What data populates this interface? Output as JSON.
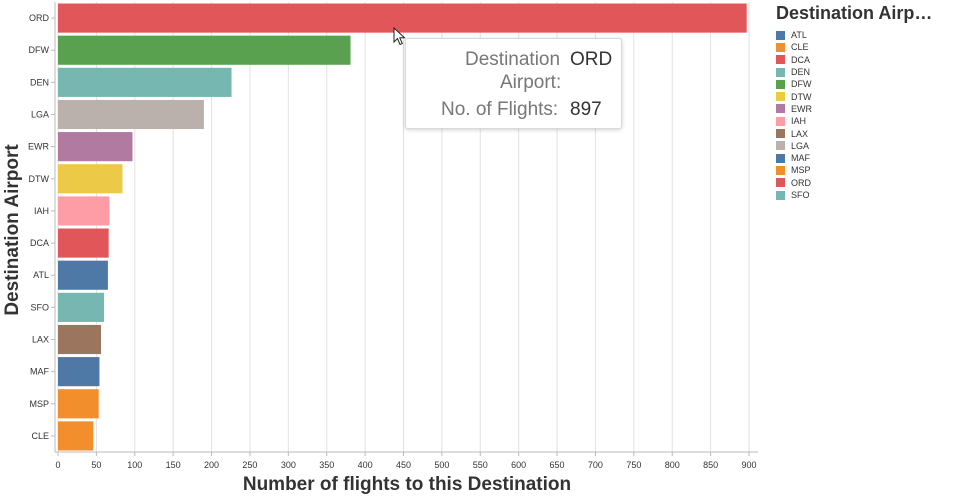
{
  "chart_data": {
    "type": "bar",
    "orientation": "horizontal",
    "categories": [
      "ORD",
      "DFW",
      "DEN",
      "LGA",
      "EWR",
      "DTW",
      "IAH",
      "DCA",
      "ATL",
      "SFO",
      "LAX",
      "MAF",
      "MSP",
      "CLE"
    ],
    "values": [
      897,
      381,
      226,
      190,
      97,
      84,
      67,
      66,
      65,
      60,
      56,
      54,
      53,
      46
    ],
    "colors": [
      "#e15759",
      "#59a14f",
      "#76b7b2",
      "#bab0ac",
      "#b07aa1",
      "#edc948",
      "#ff9da7",
      "#e15759",
      "#4e79a7",
      "#76b7b2",
      "#9c755f",
      "#4e79a7",
      "#f28e2b",
      "#f28e2b"
    ],
    "xlabel": "Number of flights to this Destination",
    "ylabel": "Destination Airport",
    "xlim": [
      0,
      900
    ],
    "xticks": [
      0,
      50,
      100,
      150,
      200,
      250,
      300,
      350,
      400,
      450,
      500,
      550,
      600,
      650,
      700,
      750,
      800,
      850,
      900
    ],
    "grid": "vertical"
  },
  "legend": {
    "title": "Destination Airp…",
    "placement": "right",
    "items": [
      {
        "label": "ATL",
        "color": "#4e79a7"
      },
      {
        "label": "CLE",
        "color": "#f28e2b"
      },
      {
        "label": "DCA",
        "color": "#e15759"
      },
      {
        "label": "DEN",
        "color": "#76b7b2"
      },
      {
        "label": "DFW",
        "color": "#59a14f"
      },
      {
        "label": "DTW",
        "color": "#edc948"
      },
      {
        "label": "EWR",
        "color": "#b07aa1"
      },
      {
        "label": "IAH",
        "color": "#ff9da7"
      },
      {
        "label": "LAX",
        "color": "#9c755f"
      },
      {
        "label": "LGA",
        "color": "#bab0ac"
      },
      {
        "label": "MAF",
        "color": "#4e79a7"
      },
      {
        "label": "MSP",
        "color": "#f28e2b"
      },
      {
        "label": "ORD",
        "color": "#e15759"
      },
      {
        "label": "SFO",
        "color": "#76b7b2"
      }
    ]
  },
  "tooltip": {
    "field1_label": "Destination",
    "field1_label_cont": "Airport:",
    "field1_value": "ORD",
    "field2_label": "No. of Flights:",
    "field2_value": "897"
  }
}
